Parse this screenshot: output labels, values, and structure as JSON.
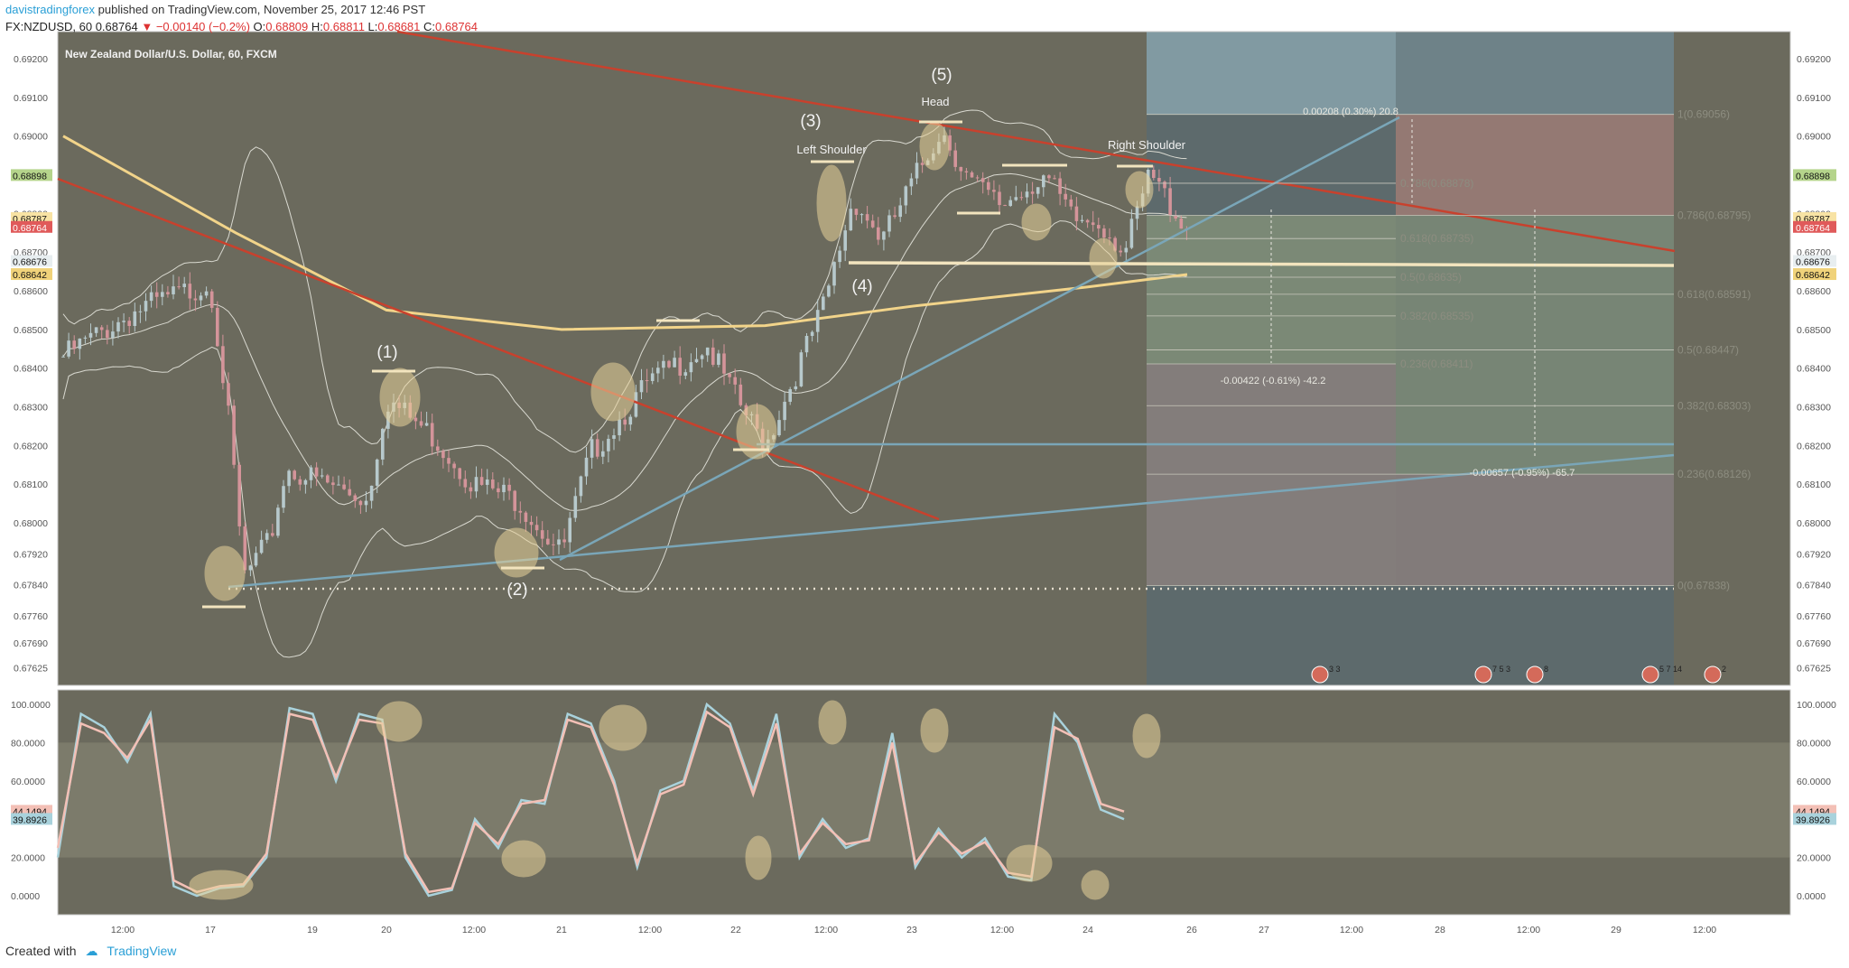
{
  "header": {
    "author": "davistradingforex",
    "published": "published on TradingView.com, November 25, 2017 12:46 PST"
  },
  "symbol_line": {
    "symbol": "FX:NZDUSD, 60",
    "last": "0.68764",
    "change": "−0.00140 (−0.2%)",
    "o_label": "O:",
    "o": "0.68809",
    "h_label": "H:",
    "h": "0.68811",
    "l_label": "L:",
    "l": "0.68681",
    "c_label": "C:",
    "c": "0.68764"
  },
  "chart_title": "New Zealand Dollar/U.S. Dollar, 60, FXCM",
  "footer": {
    "created": "Created with",
    "brand": "TradingView"
  },
  "colors": {
    "bg": "#6b6a5d",
    "projection": "#5f6e6e",
    "panel_line": "#c9c9c9",
    "bull": "#b7c9cc",
    "bear": "#d4949a",
    "ma": "#f2d48a",
    "trend_red": "#c8412d",
    "trend_blue": "#7aa6b8",
    "stoch_k": "#a9d2dc",
    "stoch_d": "#f3c0b6",
    "highlight": "#e8d29a"
  },
  "price_axis": {
    "labels": [
      "0.69200",
      "0.69100",
      "0.69000",
      "0.68900",
      "0.68800",
      "0.68700",
      "0.68600",
      "0.68500",
      "0.68400",
      "0.68300",
      "0.68200",
      "0.68100",
      "0.68000",
      "0.67920",
      "0.67840",
      "0.67760",
      "0.67690",
      "0.67625"
    ],
    "left_tags": [
      {
        "text": "0.68898",
        "bg": "#b5d48b",
        "fg": "#111"
      },
      {
        "text": "0.68787",
        "bg": "#f8e3a4",
        "fg": "#111"
      },
      {
        "text": "0.68764",
        "bg": "#e05a5a",
        "fg": "#fff"
      },
      {
        "text": "0.68676",
        "bg": "#e8eef0",
        "fg": "#111"
      },
      {
        "text": "0.68642",
        "bg": "#f0d27a",
        "fg": "#111"
      }
    ],
    "right_tags": [
      {
        "text": "0.68898",
        "bg": "#b5d48b",
        "fg": "#111"
      },
      {
        "text": "0.68787",
        "bg": "#f8e3a4",
        "fg": "#111"
      },
      {
        "text": "0.68764",
        "bg": "#e05a5a",
        "fg": "#fff"
      },
      {
        "text": "0.68676",
        "bg": "#e8eef0",
        "fg": "#111"
      },
      {
        "text": "0.68642",
        "bg": "#f0d27a",
        "fg": "#111"
      }
    ]
  },
  "stoch_axis": {
    "labels": [
      "100.0000",
      "80.0000",
      "60.0000",
      "40.0000",
      "20.0000",
      "0.0000"
    ],
    "tags": [
      {
        "text": "44.1494",
        "bg": "#f3c0b6",
        "fg": "#111"
      },
      {
        "text": "39.8926",
        "bg": "#a9d2dc",
        "fg": "#111"
      }
    ]
  },
  "time_axis": {
    "labels": [
      "12:00",
      "17",
      "19",
      "20",
      "12:00",
      "21",
      "12:00",
      "22",
      "12:00",
      "23",
      "12:00",
      "24",
      "26",
      "27",
      "12:00",
      "28",
      "12:00",
      "29",
      "12:00"
    ]
  },
  "annotations": {
    "wave1": "(1)",
    "wave2": "(2)",
    "wave3": "(3)",
    "wave4": "(4)",
    "wave5": "(5)",
    "left_shoulder": "Left Shoulder",
    "head": "Head",
    "right_shoulder": "Right Shoulder",
    "fib_a": [
      "0.786(0.68878)",
      "0.618(0.68735)",
      "0.5(0.68635)",
      "0.382(0.68535)",
      "0.236(0.68411)"
    ],
    "fib_b": [
      "1(0.69056)",
      "0.786(0.68795)",
      "0.618(0.68591)",
      "0.5(0.68447)",
      "0.382(0.68303)",
      "0.236(0.68126)",
      "0(0.67838)"
    ],
    "measure_top": "0.00208 (0.30%) 20.8",
    "measure_mid": "-0.00422 (-0.61%) -42.2",
    "measure_low": "-0.00657 (-0.95%) -65.7",
    "events": [
      "3 3",
      "7 5 3",
      "8",
      "5 7 14",
      "2"
    ]
  },
  "chart_data": {
    "type": "candlestick",
    "title": "New Zealand Dollar/U.S. Dollar, 60, FXCM",
    "symbol": "FX:NZDUSD",
    "interval": "60",
    "ylim": [
      0.6758,
      0.6927
    ],
    "last": {
      "open": 0.68809,
      "high": 0.68811,
      "low": 0.68681,
      "close": 0.68764
    },
    "anchors": [
      {
        "time": "Nov 16 08:00",
        "price": 0.6843
      },
      {
        "time": "Nov 16 16:00",
        "price": 0.6855
      },
      {
        "time": "Nov 17 00:00",
        "price": 0.6862
      },
      {
        "time": "Nov 17 04:00",
        "price": 0.683
      },
      {
        "time": "Nov 17 08:00",
        "price": 0.6786
      },
      {
        "time": "Nov 17 14:00",
        "price": 0.6795
      },
      {
        "time": "Nov 17 18:00",
        "price": 0.6814
      },
      {
        "time": "Nov 19 18:00",
        "price": 0.6806
      },
      {
        "time": "Nov 20 00:00",
        "price": 0.6832
      },
      {
        "time": "Nov 20 06:00",
        "price": 0.6823
      },
      {
        "time": "Nov 20 12:00",
        "price": 0.681
      },
      {
        "time": "Nov 20 18:00",
        "price": 0.6806
      },
      {
        "time": "Nov 21 00:00",
        "price": 0.6792
      },
      {
        "time": "Nov 21 04:00",
        "price": 0.6818
      },
      {
        "time": "Nov 21 12:00",
        "price": 0.6836
      },
      {
        "time": "Nov 21 20:00",
        "price": 0.6846
      },
      {
        "time": "Nov 22 00:00",
        "price": 0.6832
      },
      {
        "time": "Nov 22 04:00",
        "price": 0.682
      },
      {
        "time": "Nov 22 12:00",
        "price": 0.6856
      },
      {
        "time": "Nov 22 16:00",
        "price": 0.6884
      },
      {
        "time": "Nov 22 20:00",
        "price": 0.6873
      },
      {
        "time": "Nov 23 04:00",
        "price": 0.6902
      },
      {
        "time": "Nov 23 08:00",
        "price": 0.6888
      },
      {
        "time": "Nov 23 12:00",
        "price": 0.6882
      },
      {
        "time": "Nov 23 18:00",
        "price": 0.689
      },
      {
        "time": "Nov 23 22:00",
        "price": 0.6878
      },
      {
        "time": "Nov 24 02:00",
        "price": 0.6878
      },
      {
        "time": "Nov 24 06:00",
        "price": 0.687
      },
      {
        "time": "Nov 24 10:00",
        "price": 0.689
      },
      {
        "time": "Nov 24 16:00",
        "price": 0.6876
      }
    ],
    "ma200": [
      {
        "time": "Nov 16 08:00",
        "price": 0.69
      },
      {
        "time": "Nov 17 06:00",
        "price": 0.6875
      },
      {
        "time": "Nov 20 00:00",
        "price": 0.6855
      },
      {
        "time": "Nov 21 00:00",
        "price": 0.685
      },
      {
        "time": "Nov 22 04:00",
        "price": 0.6851
      },
      {
        "time": "Nov 23 00:00",
        "price": 0.6856
      },
      {
        "time": "Nov 24 00:00",
        "price": 0.6861
      },
      {
        "time": "Nov 24 16:00",
        "price": 0.68642
      }
    ],
    "stochastic": {
      "ylim": [
        0,
        100
      ],
      "k": [
        20,
        95,
        88,
        70,
        95,
        5,
        0,
        4,
        5,
        20,
        98,
        95,
        60,
        95,
        92,
        20,
        0,
        3,
        40,
        25,
        50,
        48,
        95,
        90,
        60,
        15,
        55,
        60,
        100,
        90,
        55,
        95,
        20,
        40,
        25,
        30,
        85,
        15,
        35,
        20,
        30,
        10,
        8,
        95,
        80,
        45,
        40
      ],
      "d": [
        25,
        90,
        85,
        72,
        92,
        8,
        2,
        5,
        6,
        22,
        95,
        92,
        62,
        92,
        90,
        22,
        2,
        4,
        38,
        27,
        48,
        50,
        92,
        88,
        58,
        17,
        53,
        58,
        96,
        88,
        53,
        90,
        22,
        38,
        27,
        29,
        80,
        17,
        33,
        22,
        28,
        12,
        10,
        88,
        82,
        48,
        44
      ]
    }
  }
}
